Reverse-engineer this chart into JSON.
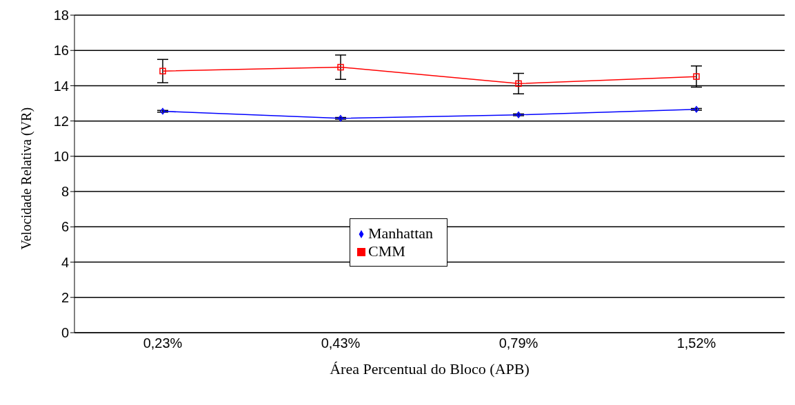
{
  "chart_data": {
    "type": "line",
    "xlabel": "Área Percentual do Bloco (APB)",
    "ylabel": "Velocidade Relativa (VR)",
    "categories": [
      "0,23%",
      "0,43%",
      "0,79%",
      "1,52%"
    ],
    "series": [
      {
        "name": "Manhattan",
        "color": "#0000ff",
        "marker": "diamond",
        "values": [
          12.55,
          12.15,
          12.35,
          12.66
        ],
        "errors": [
          0.05,
          0.05,
          0.05,
          0.05
        ]
      },
      {
        "name": "CMM",
        "color": "#ff0000",
        "marker": "square",
        "values": [
          14.83,
          15.05,
          14.12,
          14.52
        ],
        "errors": [
          0.66,
          0.69,
          0.58,
          0.6
        ]
      }
    ],
    "ylim": [
      0,
      18
    ],
    "yticks": [
      0,
      2,
      4,
      6,
      8,
      10,
      12,
      14,
      16,
      18
    ],
    "grid": "y",
    "legend": "center",
    "line_style": "solid"
  }
}
